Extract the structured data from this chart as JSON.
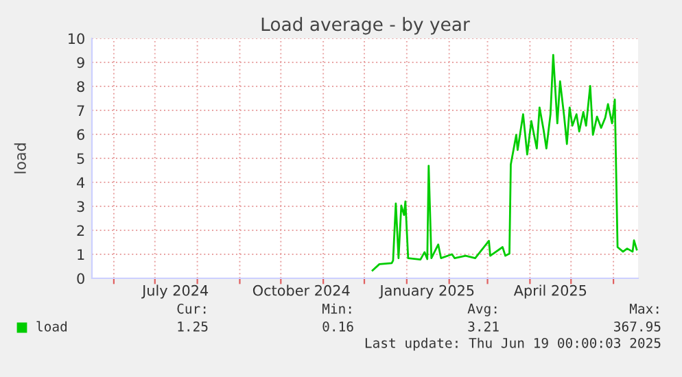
{
  "chart_data": {
    "type": "line",
    "title": "Load average - by year",
    "ylabel": "load",
    "xlim": [
      "2024-05-16",
      "2025-06-19"
    ],
    "ylim": [
      0,
      10
    ],
    "yticks": [
      0,
      1,
      2,
      3,
      4,
      5,
      6,
      7,
      8,
      9,
      10
    ],
    "xticks": [
      {
        "value": "2024-06-01",
        "label": null
      },
      {
        "value": "2024-07-01",
        "label": null
      },
      {
        "value": "2024-08-01",
        "label": null
      },
      {
        "value": "2024-09-01",
        "label": null
      },
      {
        "value": "2024-10-01",
        "label": null
      },
      {
        "value": "2024-11-01",
        "label": null
      },
      {
        "value": "2024-12-01",
        "label": null
      },
      {
        "value": "2025-01-01",
        "label": null
      },
      {
        "value": "2025-02-01",
        "label": null
      },
      {
        "value": "2025-03-01",
        "label": null
      },
      {
        "value": "2025-04-01",
        "label": null
      },
      {
        "value": "2025-05-01",
        "label": null
      },
      {
        "value": "2025-06-01",
        "label": null
      },
      {
        "value": "2024-07-16",
        "label": "July 2024"
      },
      {
        "value": "2024-10-16",
        "label": "October 2024"
      },
      {
        "value": "2025-01-16",
        "label": "January 2025"
      },
      {
        "value": "2025-04-16",
        "label": "April 2025"
      }
    ],
    "grid": true,
    "legend": "bottom",
    "x": [
      "2024-12-07",
      "2024-12-12",
      "2024-12-21",
      "2024-12-22",
      "2024-12-24",
      "2024-12-26",
      "2024-12-28",
      "2024-12-30",
      "2024-12-31",
      "2025-01-02",
      "2025-01-11",
      "2025-01-14",
      "2025-01-16",
      "2025-01-17",
      "2025-01-19",
      "2025-01-24",
      "2025-01-26",
      "2025-02-03",
      "2025-02-05",
      "2025-02-13",
      "2025-02-20",
      "2025-03-02",
      "2025-03-03",
      "2025-03-12",
      "2025-03-14",
      "2025-03-17",
      "2025-03-18",
      "2025-03-22",
      "2025-03-23",
      "2025-03-27",
      "2025-03-30",
      "2025-04-02",
      "2025-04-06",
      "2025-04-08",
      "2025-04-11",
      "2025-04-13",
      "2025-04-16",
      "2025-04-18",
      "2025-04-21",
      "2025-04-23",
      "2025-04-26",
      "2025-04-28",
      "2025-04-30",
      "2025-05-02",
      "2025-05-05",
      "2025-05-07",
      "2025-05-10",
      "2025-05-12",
      "2025-05-15",
      "2025-05-17",
      "2025-05-20",
      "2025-05-23",
      "2025-05-26",
      "2025-05-28",
      "2025-05-31",
      "2025-06-02",
      "2025-06-04",
      "2025-06-08",
      "2025-06-11",
      "2025-06-15",
      "2025-06-16",
      "2025-06-18"
    ],
    "series": [
      {
        "name": "load",
        "color": "#00cc00",
        "values": [
          0.33,
          0.59,
          0.63,
          0.74,
          3.12,
          0.84,
          3.03,
          2.64,
          3.2,
          0.84,
          0.78,
          1.09,
          0.8,
          4.69,
          0.84,
          1.41,
          0.84,
          1.0,
          0.84,
          0.94,
          0.84,
          1.56,
          0.94,
          1.3,
          0.94,
          1.03,
          4.74,
          5.98,
          5.35,
          6.84,
          5.16,
          6.55,
          5.41,
          7.12,
          6.17,
          5.41,
          6.84,
          9.31,
          6.46,
          8.21,
          6.74,
          5.6,
          7.12,
          6.36,
          6.84,
          6.12,
          6.93,
          6.36,
          8.02,
          5.98,
          6.74,
          6.27,
          6.69,
          7.26,
          6.46,
          7.45,
          1.3,
          1.11,
          1.24,
          1.11,
          1.58,
          1.2
        ]
      }
    ],
    "annotations": [
      "Cur:",
      "Min:",
      "Avg:",
      "Max:",
      "1.25",
      "0.16",
      "3.21",
      "367.95",
      "Last update: Thu Jun 19 00:00:03 2025"
    ]
  }
}
